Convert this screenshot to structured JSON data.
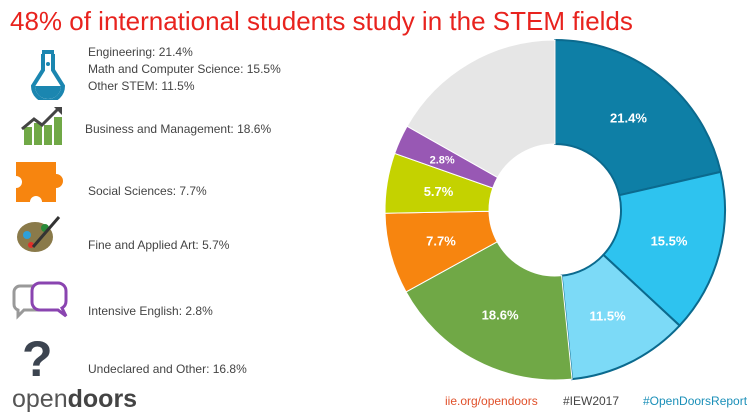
{
  "title": "48% of international students study in the STEM fields",
  "legend": {
    "stem": [
      "Engineering: 21.4%",
      "Math and Computer Science: 15.5%",
      "Other STEM: 11.5%"
    ],
    "business": "Business and Management: 18.6%",
    "social": "Social Sciences: 7.7%",
    "art": "Fine and Applied Art: 5.7%",
    "english": "Intensive English: 2.8%",
    "other": "Undeclared and Other: 16.8%"
  },
  "footer": {
    "logo_light": "open",
    "logo_bold": "doors",
    "url": "iie.org/opendoors",
    "tag1": "#IEW2017",
    "tag2": "#OpenDoorsReport"
  },
  "colors": {
    "url": "#e0502a",
    "tag1": "#444444",
    "tag2": "#1a8fb8"
  },
  "chart_data": {
    "type": "pie",
    "subtype": "donut",
    "title": "48% of international students study in the STEM fields",
    "categories": [
      "Engineering",
      "Math and Computer Science",
      "Other STEM",
      "Business and Management",
      "Social Sciences",
      "Fine and Applied Art",
      "Intensive English",
      "Undeclared and Other"
    ],
    "values": [
      21.4,
      15.5,
      11.5,
      18.6,
      7.7,
      5.7,
      2.8,
      16.8
    ],
    "labels": [
      "21.4%",
      "15.5%",
      "11.5%",
      "18.6%",
      "7.7%",
      "5.7%",
      "2.8%",
      ""
    ],
    "colors": [
      "#0e7fa6",
      "#2ec3ef",
      "#7cdaf7",
      "#70a846",
      "#f7850f",
      "#c4d200",
      "#9858b4",
      "#e6e6e6"
    ],
    "start": "12 o'clock, clockwise"
  }
}
